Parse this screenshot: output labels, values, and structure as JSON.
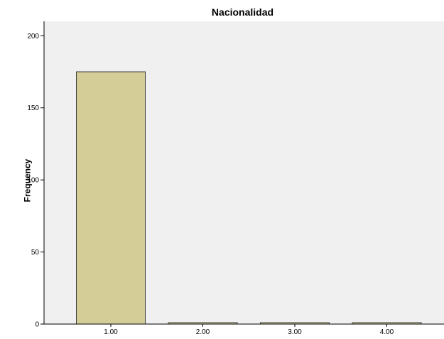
{
  "chart_data": {
    "type": "bar",
    "title": "Nacionalidad",
    "xlabel": "",
    "ylabel": "Frequency",
    "categories": [
      "1.00",
      "2.00",
      "3.00",
      "4.00"
    ],
    "values": [
      175,
      1,
      1,
      1
    ],
    "ylim": [
      0,
      210
    ],
    "yticks": [
      0,
      50,
      100,
      150,
      200
    ],
    "grid": false,
    "colors": {
      "bar_fill": "#d4cd98",
      "bar_stroke": "#3c3c3c",
      "plot_background": "#f0f0f0",
      "axis": "#000000"
    }
  }
}
